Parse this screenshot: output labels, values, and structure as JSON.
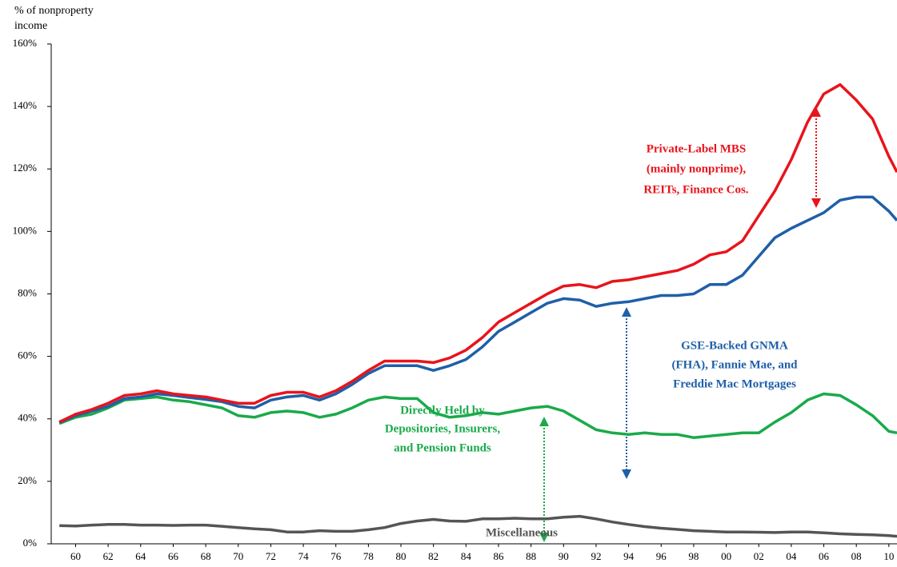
{
  "chart_data": {
    "type": "line",
    "stacked": true,
    "y_label": [
      "% of nonproperty",
      "income"
    ],
    "x": [
      1959,
      1960,
      1961,
      1962,
      1963,
      1964,
      1965,
      1966,
      1967,
      1968,
      1969,
      1970,
      1971,
      1972,
      1973,
      1974,
      1975,
      1976,
      1977,
      1978,
      1979,
      1980,
      1981,
      1982,
      1983,
      1984,
      1985,
      1986,
      1987,
      1988,
      1989,
      1990,
      1991,
      1992,
      1993,
      1994,
      1995,
      1996,
      1997,
      1998,
      1999,
      2000,
      2001,
      2002,
      2003,
      2004,
      2005,
      2006,
      2007,
      2008,
      2009,
      2010,
      2010.5
    ],
    "xlim": [
      1958.5,
      2010.5
    ],
    "xticks": [
      {
        "value": 1960,
        "label": "60"
      },
      {
        "value": 1962,
        "label": "62"
      },
      {
        "value": 1964,
        "label": "64"
      },
      {
        "value": 1966,
        "label": "66"
      },
      {
        "value": 1968,
        "label": "68"
      },
      {
        "value": 1970,
        "label": "70"
      },
      {
        "value": 1972,
        "label": "72"
      },
      {
        "value": 1974,
        "label": "74"
      },
      {
        "value": 1976,
        "label": "76"
      },
      {
        "value": 1978,
        "label": "78"
      },
      {
        "value": 1980,
        "label": "80"
      },
      {
        "value": 1982,
        "label": "82"
      },
      {
        "value": 1984,
        "label": "84"
      },
      {
        "value": 1986,
        "label": "86"
      },
      {
        "value": 1988,
        "label": "88"
      },
      {
        "value": 1990,
        "label": "90"
      },
      {
        "value": 1992,
        "label": "92"
      },
      {
        "value": 1994,
        "label": "94"
      },
      {
        "value": 1996,
        "label": "96"
      },
      {
        "value": 1998,
        "label": "98"
      },
      {
        "value": 2000,
        "label": "00"
      },
      {
        "value": 2002,
        "label": "02"
      },
      {
        "value": 2004,
        "label": "04"
      },
      {
        "value": 2006,
        "label": "06"
      },
      {
        "value": 2008,
        "label": "08"
      },
      {
        "value": 2010,
        "label": "10"
      }
    ],
    "ylim": [
      0,
      160
    ],
    "yticks": [
      {
        "value": 0,
        "label": "0%"
      },
      {
        "value": 20,
        "label": "20%"
      },
      {
        "value": 40,
        "label": "40%"
      },
      {
        "value": 60,
        "label": "60%"
      },
      {
        "value": 80,
        "label": "80%"
      },
      {
        "value": 100,
        "label": "100%"
      },
      {
        "value": 120,
        "label": "120%"
      },
      {
        "value": 140,
        "label": "140%"
      },
      {
        "value": 160,
        "label": "160%"
      }
    ],
    "series": [
      {
        "name": [
          "Miscellaneous"
        ],
        "color": "#555555",
        "values": [
          5.8,
          5.7,
          6,
          6.2,
          6.2,
          6,
          6,
          5.9,
          6,
          6,
          5.6,
          5.2,
          4.8,
          4.5,
          3.8,
          3.8,
          4.2,
          4,
          4,
          4.5,
          5.2,
          6.5,
          7.3,
          7.8,
          7.3,
          7.2,
          8,
          8,
          8.2,
          8,
          8,
          8.5,
          8.8,
          8,
          7,
          6.2,
          5.5,
          5,
          4.6,
          4.2,
          4,
          3.8,
          3.8,
          3.7,
          3.6,
          3.8,
          3.8,
          3.5,
          3.2,
          3,
          2.9,
          2.6,
          2.4
        ]
      },
      {
        "name": [
          "Directly Held by",
          "Depositories, Insurers,",
          "and Pension Funds"
        ],
        "color": "#1aaa4a",
        "values": [
          32.7,
          34.8,
          35.5,
          37.3,
          39.8,
          40.5,
          41,
          40.1,
          39.5,
          38.5,
          37.9,
          35.8,
          35.7,
          37.5,
          38.7,
          38.2,
          36.3,
          37.5,
          39.5,
          41.5,
          41.8,
          40,
          39.2,
          34.2,
          33.2,
          33.8,
          34,
          33.5,
          34.3,
          35.5,
          36,
          34,
          30.7,
          28.5,
          28.5,
          28.8,
          30,
          30,
          30.4,
          29.8,
          30.5,
          31.2,
          31.7,
          31.8,
          35.4,
          38.2,
          42.2,
          44.5,
          44.3,
          41.5,
          38.1,
          33.4,
          33.1
        ]
      },
      {
        "name": [
          "GSE-Backed GNMA",
          "(FHA), Fannie Mae, and",
          "Freddie Mac Mortgages"
        ],
        "color": "#1f5fa8",
        "values": [
          0.3,
          0.5,
          1,
          0.5,
          0.5,
          0.5,
          1,
          1.5,
          1.3,
          1.7,
          2,
          3,
          3,
          4,
          4.5,
          5.5,
          5.5,
          6.5,
          7.5,
          8.5,
          10,
          10.5,
          10.5,
          13.5,
          16.5,
          18,
          21,
          26.5,
          28.5,
          30.5,
          33,
          36,
          38.5,
          39.5,
          41.5,
          42.5,
          43,
          44.5,
          44.5,
          46,
          48.5,
          48,
          50.5,
          56.5,
          59,
          59,
          57.5,
          58,
          62.5,
          66.5,
          70,
          70.5,
          68
        ]
      },
      {
        "name": [
          "Private-Label MBS",
          "(mainly nonprime),",
          "REITs, Finance Cos."
        ],
        "color": "#e8141c",
        "values": [
          0.2,
          0.5,
          0.5,
          1,
          1,
          1,
          1,
          0.5,
          0.7,
          0.8,
          0.5,
          1,
          1.5,
          1.5,
          1.5,
          1,
          1,
          1,
          1,
          1,
          1.5,
          1.5,
          1.5,
          2.5,
          2.5,
          3,
          3,
          3,
          3,
          3,
          3,
          4,
          5,
          6,
          7,
          7,
          7,
          7,
          8,
          9.5,
          9.5,
          10.5,
          11,
          13,
          15,
          22,
          31.5,
          38,
          37,
          31,
          25,
          17.5,
          15.5
        ]
      }
    ]
  }
}
